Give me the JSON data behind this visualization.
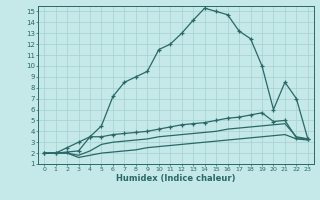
{
  "xlabel": "Humidex (Indice chaleur)",
  "background_color": "#c5e8e8",
  "grid_color": "#a8d0d0",
  "line_color": "#2a6868",
  "xlim": [
    -0.5,
    23.5
  ],
  "ylim": [
    1,
    15.5
  ],
  "xticks": [
    0,
    1,
    2,
    3,
    4,
    5,
    6,
    7,
    8,
    9,
    10,
    11,
    12,
    13,
    14,
    15,
    16,
    17,
    18,
    19,
    20,
    21,
    22,
    23
  ],
  "yticks": [
    1,
    2,
    3,
    4,
    5,
    6,
    7,
    8,
    9,
    10,
    11,
    12,
    13,
    14,
    15
  ],
  "curve1_x": [
    0,
    1,
    2,
    3,
    4,
    5,
    6,
    7,
    8,
    9,
    10,
    11,
    12,
    13,
    14,
    15,
    16,
    17,
    18,
    19,
    20,
    21,
    22,
    23
  ],
  "curve1_y": [
    2.0,
    2.0,
    2.5,
    3.0,
    3.5,
    4.5,
    7.2,
    8.5,
    9.0,
    9.5,
    11.5,
    12.0,
    13.0,
    14.2,
    15.3,
    15.0,
    14.7,
    13.2,
    12.5,
    10.0,
    6.0,
    8.5,
    7.0,
    3.3
  ],
  "curve2_x": [
    0,
    1,
    2,
    3,
    4,
    5,
    6,
    7,
    8,
    9,
    10,
    11,
    12,
    13,
    14,
    15,
    16,
    17,
    18,
    19,
    20,
    21,
    22,
    23
  ],
  "curve2_y": [
    2.0,
    2.0,
    2.1,
    2.2,
    3.5,
    3.5,
    3.7,
    3.8,
    3.9,
    4.0,
    4.2,
    4.4,
    4.6,
    4.7,
    4.8,
    5.0,
    5.2,
    5.3,
    5.5,
    5.7,
    4.9,
    5.0,
    3.4,
    3.3
  ],
  "curve3_x": [
    0,
    1,
    2,
    3,
    4,
    5,
    6,
    7,
    8,
    9,
    10,
    11,
    12,
    13,
    14,
    15,
    16,
    17,
    18,
    19,
    20,
    21,
    22,
    23
  ],
  "curve3_y": [
    2.0,
    2.0,
    2.0,
    1.8,
    2.2,
    2.8,
    3.0,
    3.1,
    3.2,
    3.3,
    3.5,
    3.6,
    3.7,
    3.8,
    3.9,
    4.0,
    4.2,
    4.3,
    4.4,
    4.5,
    4.6,
    4.7,
    3.5,
    3.3
  ],
  "curve4_x": [
    0,
    1,
    2,
    3,
    4,
    5,
    6,
    7,
    8,
    9,
    10,
    11,
    12,
    13,
    14,
    15,
    16,
    17,
    18,
    19,
    20,
    21,
    22,
    23
  ],
  "curve4_y": [
    2.0,
    2.0,
    2.0,
    1.6,
    1.8,
    2.0,
    2.1,
    2.2,
    2.3,
    2.5,
    2.6,
    2.7,
    2.8,
    2.9,
    3.0,
    3.1,
    3.2,
    3.3,
    3.4,
    3.5,
    3.6,
    3.7,
    3.3,
    3.2
  ]
}
